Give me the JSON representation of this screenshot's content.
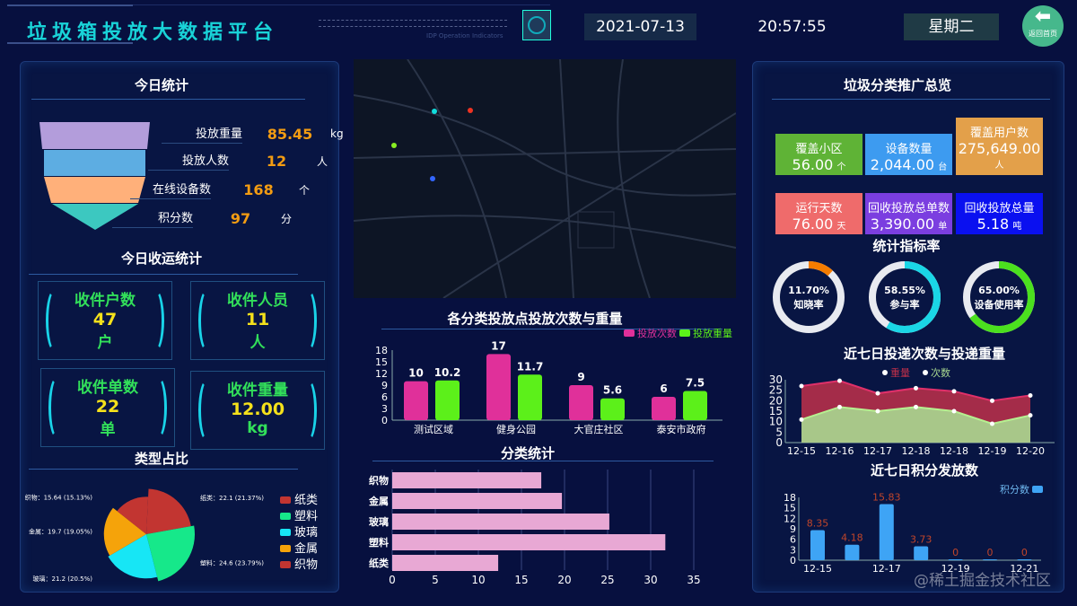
{
  "header": {
    "title": "垃圾箱投放大数据平台",
    "sub_label": "IDP Operation Indicators",
    "date": "2021-07-13",
    "time": "20:57:55",
    "weekday": "星期二",
    "home_button": "返回首页"
  },
  "left": {
    "today_title": "今日统计",
    "funnel": [
      {
        "label": "投放重量",
        "value": "85.45",
        "unit": "kg",
        "color": "#b39ddb"
      },
      {
        "label": "投放人数",
        "value": "12",
        "unit": "人",
        "color": "#5dade2"
      },
      {
        "label": "在线设备数",
        "value": "168",
        "unit": "个",
        "color": "#ffb07a"
      },
      {
        "label": "积分数",
        "value": "97",
        "unit": "分",
        "color": "#3cc8c0"
      }
    ],
    "transport_title": "今日收运统计",
    "cards": [
      {
        "label": "收件户数",
        "value": "47",
        "unit": "户"
      },
      {
        "label": "收件人员",
        "value": "11",
        "unit": "人"
      },
      {
        "label": "收件单数",
        "value": "22",
        "unit": "单"
      },
      {
        "label": "收件重量",
        "value": "12.00",
        "unit": "kg"
      }
    ],
    "type_title": "类型占比"
  },
  "center": {
    "bar_title": "各分类投放点投放次数与重量",
    "hbar_title": "分类统计"
  },
  "right": {
    "title": "垃圾分类推广总览",
    "kpis": [
      {
        "label": "覆盖小区",
        "value": "56.00",
        "unit": "个",
        "color": "#5fb336"
      },
      {
        "label": "设备数量",
        "value": "2,044.00",
        "unit": "台",
        "color": "#3d9bf0"
      },
      {
        "label": "覆盖用户数",
        "value": "275,649.00",
        "unit": "人",
        "color": "#e3a04a"
      },
      {
        "label": "运行天数",
        "value": "76.00",
        "unit": "天",
        "color": "#ef6b6b"
      },
      {
        "label": "回收投放总单数",
        "value": "3,390.00",
        "unit": "单",
        "color": "#7b3ee0"
      },
      {
        "label": "回收投放总量",
        "value": "5.18",
        "unit": "吨",
        "color": "#0a10f0"
      }
    ],
    "rate_title": "统计指标率",
    "rates": [
      {
        "label": "知晓率",
        "value": "11.70%",
        "pct": 11.7,
        "color": "#f57c00"
      },
      {
        "label": "参与率",
        "value": "58.55%",
        "pct": 58.55,
        "color": "#1ad6e6"
      },
      {
        "label": "设备使用率",
        "value": "65.00%",
        "pct": 65,
        "color": "#4be01e"
      }
    ],
    "area_title": "近七日投递次数与投递重量",
    "points_title": "近七日积分发放数"
  },
  "watermark": "@稀土掘金技术社区",
  "chart_data": [
    {
      "type": "pie",
      "variant": "rose",
      "legend": [
        "纸类",
        "塑料",
        "玻璃",
        "金属",
        "织物"
      ],
      "legend_position": "right",
      "slices": [
        {
          "name": "纸类",
          "value": 22.1,
          "label": "纸类：22.1 (21.37%)",
          "color": "#c23531"
        },
        {
          "name": "塑料",
          "value": 24.6,
          "label": "塑料：24.6 (23.79%)",
          "color": "#16e88a"
        },
        {
          "name": "玻璃",
          "value": 21.2,
          "label": "玻璃：21.2 (20.5%)",
          "color": "#17e6f5"
        },
        {
          "name": "金属",
          "value": 19.7,
          "label": "金属：19.7 (19.05%)",
          "color": "#f5a30a"
        },
        {
          "name": "织物",
          "value": 15.64,
          "label": "织物：15.64 (15.13%)",
          "color": "#c23531"
        }
      ]
    },
    {
      "type": "bar",
      "categories": [
        "测试区域",
        "健身公园",
        "大官庄社区",
        "泰安市政府"
      ],
      "ylim": [
        0,
        18
      ],
      "yticks": [
        0,
        3,
        6,
        9,
        12,
        15,
        18
      ],
      "legend_position": "top-right",
      "series": [
        {
          "name": "投放次数",
          "values": [
            10,
            17,
            9,
            6
          ],
          "color": "#e0309a"
        },
        {
          "name": "投放重量",
          "values": [
            10.2,
            11.7,
            5.6,
            7.5
          ],
          "color": "#5cf01a"
        }
      ]
    },
    {
      "type": "bar",
      "orientation": "horizontal",
      "categories": [
        "织物",
        "金属",
        "玻璃",
        "塑料",
        "纸类"
      ],
      "values": [
        17.3,
        19.7,
        25.2,
        31.7,
        12.3
      ],
      "xlim": [
        0,
        35
      ],
      "xticks": [
        0,
        5,
        10,
        15,
        20,
        25,
        30,
        35
      ],
      "grid": true,
      "color": "#e8a8d4"
    },
    {
      "type": "area",
      "categories": [
        "12-15",
        "12-16",
        "12-17",
        "12-18",
        "12-18",
        "12-19",
        "12-20"
      ],
      "ylim": [
        0,
        30
      ],
      "yticks": [
        0,
        5,
        10,
        15,
        20,
        25,
        30
      ],
      "legend_position": "top",
      "series": [
        {
          "name": "重量",
          "values": [
            27,
            29.5,
            23.5,
            26,
            24.5,
            20,
            22.5
          ],
          "color": "#c0304a"
        },
        {
          "name": "次数",
          "values": [
            11,
            17,
            15,
            17,
            15,
            9,
            13
          ],
          "color": "#a8d890"
        }
      ]
    },
    {
      "type": "bar",
      "categories": [
        "12-15",
        "12-16",
        "12-17",
        "12-18",
        "12-19",
        "12-20",
        "12-21"
      ],
      "tick_labels": [
        "12-15",
        "",
        "12-17",
        "",
        "12-19",
        "",
        "12-21"
      ],
      "ylim": [
        0,
        18
      ],
      "yticks": [
        0,
        3,
        6,
        9,
        12,
        15,
        18
      ],
      "legend_position": "top-right",
      "series": [
        {
          "name": "积分数",
          "values": [
            8.35,
            4.18,
            15.83,
            3.73,
            0,
            0,
            0
          ],
          "color": "#3ea4f5"
        }
      ]
    }
  ]
}
